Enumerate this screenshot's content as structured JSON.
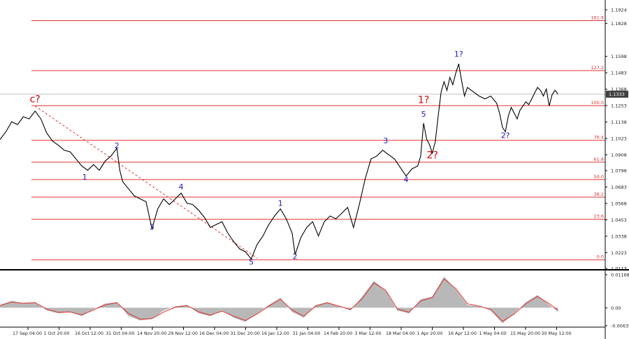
{
  "chart_data": [
    {
      "type": "line",
      "title": "",
      "price_axis_labels": [
        "1.1924",
        "1.1828",
        "1.1598",
        "1.1483",
        "1.1368",
        "1.1253",
        "1.1138",
        "1.1023",
        "1.0908",
        "1.0798",
        "1.0683",
        "1.0568",
        "1.0453",
        "1.0338",
        "1.0223",
        "1.0113"
      ],
      "current_price_label": "1.1333",
      "ylim": [
        1.0113,
        1.1924
      ],
      "fib_levels": [
        {
          "label": "161.8",
          "value": 1.1848
        },
        {
          "label": "127.2",
          "value": 1.1498
        },
        {
          "label": "100.0",
          "value": 1.1253
        },
        {
          "label": "76.4",
          "value": 1.101
        },
        {
          "label": "61.8",
          "value": 1.0857
        },
        {
          "label": "50.0",
          "value": 1.0735
        },
        {
          "label": "38.2",
          "value": 1.0612
        },
        {
          "label": "23.6",
          "value": 1.0457
        },
        {
          "label": "0.0",
          "value": 1.0173
        }
      ],
      "wave_labels": [
        {
          "text": "c?",
          "color": "#d00000",
          "x": 12,
          "y": 1.1275
        },
        {
          "text": "1",
          "color": "#1c1cb8",
          "x": 29,
          "y": 1.0735
        },
        {
          "text": "2",
          "color": "#1c1cb8",
          "x": 40,
          "y": 1.0955
        },
        {
          "text": "3",
          "color": "#1c1cb8",
          "x": 52,
          "y": 1.0385
        },
        {
          "text": "4",
          "color": "#1c1cb8",
          "x": 62,
          "y": 1.0665
        },
        {
          "text": "5",
          "color": "#1c1cb8",
          "x": 86,
          "y": 1.014
        },
        {
          "text": "1",
          "color": "#1c1cb8",
          "x": 96,
          "y": 1.055
        },
        {
          "text": "2",
          "color": "#1c1cb8",
          "x": 101,
          "y": 1.018
        },
        {
          "text": "3",
          "color": "#1c1cb8",
          "x": 132,
          "y": 1.099
        },
        {
          "text": "4",
          "color": "#1c1cb8",
          "x": 139,
          "y": 1.0718
        },
        {
          "text": "5",
          "color": "#1c1cb8",
          "x": 145,
          "y": 1.1175
        },
        {
          "text": "1?",
          "color": "#d00000",
          "x": 145,
          "y": 1.127
        },
        {
          "text": "2?",
          "color": "#d00000",
          "x": 148,
          "y": 1.0885
        },
        {
          "text": "1?",
          "color": "#1c1cb8",
          "x": 157,
          "y": 1.1595
        },
        {
          "text": "2?",
          "color": "#1c1cb8",
          "x": 173,
          "y": 1.1025
        }
      ],
      "price_series": [
        {
          "x": 0,
          "y": 1.1015
        },
        {
          "x": 2,
          "y": 1.107
        },
        {
          "x": 4,
          "y": 1.114
        },
        {
          "x": 6,
          "y": 1.112
        },
        {
          "x": 8,
          "y": 1.1175
        },
        {
          "x": 10,
          "y": 1.116
        },
        {
          "x": 12,
          "y": 1.1215
        },
        {
          "x": 14,
          "y": 1.116
        },
        {
          "x": 16,
          "y": 1.106
        },
        {
          "x": 18,
          "y": 1.1005
        },
        {
          "x": 20,
          "y": 1.0975
        },
        {
          "x": 22,
          "y": 1.094
        },
        {
          "x": 24,
          "y": 1.093
        },
        {
          "x": 26,
          "y": 1.088
        },
        {
          "x": 28,
          "y": 1.083
        },
        {
          "x": 30,
          "y": 1.08
        },
        {
          "x": 32,
          "y": 1.084
        },
        {
          "x": 34,
          "y": 1.08
        },
        {
          "x": 36,
          "y": 1.0865
        },
        {
          "x": 38,
          "y": 1.09
        },
        {
          "x": 40,
          "y": 1.0955
        },
        {
          "x": 41,
          "y": 1.08
        },
        {
          "x": 42,
          "y": 1.072
        },
        {
          "x": 44,
          "y": 1.067
        },
        {
          "x": 46,
          "y": 1.062
        },
        {
          "x": 48,
          "y": 1.06
        },
        {
          "x": 50,
          "y": 1.058
        },
        {
          "x": 52,
          "y": 1.039
        },
        {
          "x": 54,
          "y": 1.053
        },
        {
          "x": 56,
          "y": 1.06
        },
        {
          "x": 58,
          "y": 1.056
        },
        {
          "x": 60,
          "y": 1.06
        },
        {
          "x": 62,
          "y": 1.064
        },
        {
          "x": 64,
          "y": 1.057
        },
        {
          "x": 66,
          "y": 1.056
        },
        {
          "x": 68,
          "y": 1.052
        },
        {
          "x": 70,
          "y": 1.047
        },
        {
          "x": 72,
          "y": 1.04
        },
        {
          "x": 74,
          "y": 1.042
        },
        {
          "x": 76,
          "y": 1.044
        },
        {
          "x": 78,
          "y": 1.036
        },
        {
          "x": 80,
          "y": 1.03
        },
        {
          "x": 82,
          "y": 1.025
        },
        {
          "x": 84,
          "y": 1.023
        },
        {
          "x": 86,
          "y": 1.018
        },
        {
          "x": 88,
          "y": 1.028
        },
        {
          "x": 90,
          "y": 1.034
        },
        {
          "x": 92,
          "y": 1.042
        },
        {
          "x": 94,
          "y": 1.048
        },
        {
          "x": 96,
          "y": 1.053
        },
        {
          "x": 98,
          "y": 1.046
        },
        {
          "x": 100,
          "y": 1.036
        },
        {
          "x": 101,
          "y": 1.021
        },
        {
          "x": 103,
          "y": 1.033
        },
        {
          "x": 105,
          "y": 1.04
        },
        {
          "x": 107,
          "y": 1.044
        },
        {
          "x": 109,
          "y": 1.034
        },
        {
          "x": 111,
          "y": 1.044
        },
        {
          "x": 113,
          "y": 1.048
        },
        {
          "x": 115,
          "y": 1.046
        },
        {
          "x": 117,
          "y": 1.05
        },
        {
          "x": 119,
          "y": 1.054
        },
        {
          "x": 121,
          "y": 1.04
        },
        {
          "x": 123,
          "y": 1.056
        },
        {
          "x": 125,
          "y": 1.074
        },
        {
          "x": 127,
          "y": 1.088
        },
        {
          "x": 129,
          "y": 1.09
        },
        {
          "x": 131,
          "y": 1.094
        },
        {
          "x": 133,
          "y": 1.091
        },
        {
          "x": 135,
          "y": 1.088
        },
        {
          "x": 137,
          "y": 1.082
        },
        {
          "x": 139,
          "y": 1.076
        },
        {
          "x": 141,
          "y": 1.081
        },
        {
          "x": 143,
          "y": 1.083
        },
        {
          "x": 144,
          "y": 1.09
        },
        {
          "x": 145,
          "y": 1.113
        },
        {
          "x": 146,
          "y": 1.102
        },
        {
          "x": 147,
          "y": 1.098
        },
        {
          "x": 148,
          "y": 1.092
        },
        {
          "x": 149,
          "y": 1.1
        },
        {
          "x": 150,
          "y": 1.118
        },
        {
          "x": 151,
          "y": 1.135
        },
        {
          "x": 152,
          "y": 1.142
        },
        {
          "x": 153,
          "y": 1.136
        },
        {
          "x": 154,
          "y": 1.145
        },
        {
          "x": 155,
          "y": 1.14
        },
        {
          "x": 156,
          "y": 1.148
        },
        {
          "x": 157,
          "y": 1.1545
        },
        {
          "x": 158,
          "y": 1.143
        },
        {
          "x": 159,
          "y": 1.132
        },
        {
          "x": 160,
          "y": 1.138
        },
        {
          "x": 162,
          "y": 1.135
        },
        {
          "x": 164,
          "y": 1.132
        },
        {
          "x": 166,
          "y": 1.13
        },
        {
          "x": 168,
          "y": 1.132
        },
        {
          "x": 170,
          "y": 1.127
        },
        {
          "x": 171,
          "y": 1.12
        },
        {
          "x": 172,
          "y": 1.11
        },
        {
          "x": 173,
          "y": 1.107
        },
        {
          "x": 174,
          "y": 1.118
        },
        {
          "x": 175,
          "y": 1.124
        },
        {
          "x": 176,
          "y": 1.12
        },
        {
          "x": 177,
          "y": 1.116
        },
        {
          "x": 178,
          "y": 1.122
        },
        {
          "x": 179,
          "y": 1.125
        },
        {
          "x": 180,
          "y": 1.128
        },
        {
          "x": 181,
          "y": 1.126
        },
        {
          "x": 182,
          "y": 1.13
        },
        {
          "x": 183,
          "y": 1.134
        },
        {
          "x": 184,
          "y": 1.138
        },
        {
          "x": 185,
          "y": 1.136
        },
        {
          "x": 186,
          "y": 1.132
        },
        {
          "x": 187,
          "y": 1.137
        },
        {
          "x": 188,
          "y": 1.125
        },
        {
          "x": 189,
          "y": 1.133
        },
        {
          "x": 190,
          "y": 1.136
        },
        {
          "x": 191,
          "y": 1.1333
        }
      ],
      "trendline": [
        {
          "x": 12,
          "y": 1.125
        },
        {
          "x": 88,
          "y": 1.0185
        }
      ],
      "x_range": [
        0,
        200
      ],
      "grid": false,
      "legend": "none"
    },
    {
      "type": "area",
      "indicator_axis_labels": [
        "0.01168",
        "0.00",
        "-0.00635"
      ],
      "ylim": [
        -0.00635,
        0.01168
      ],
      "x_tick_labels": [
        "17 Sep 04:00",
        "1 Oct 20:00",
        "16 Oct 12:00",
        "31 Oct 04:00",
        "14 Nov 20:00",
        "29 Nov 12:00",
        "16 Dec 04:00",
        "31 Dec 20:00",
        "16 Jan 12:00",
        "31 Jan 04:00",
        "14 Feb 20:00",
        "3 Mar 12:00",
        "18 Mar 04:00",
        "1 Apr 20:00",
        "16 Apr 12:00",
        "1 May 04:00",
        "15 May 20:00",
        "30 May 12:00"
      ],
      "x_tick_positions": [
        6,
        14,
        22,
        30,
        38,
        46,
        54,
        62,
        70,
        78,
        86,
        94,
        102,
        110,
        118,
        126,
        134,
        142
      ],
      "histogram": [
        {
          "x": 0,
          "y": 0.001
        },
        {
          "x": 4,
          "y": 0.0025
        },
        {
          "x": 8,
          "y": 0.0015
        },
        {
          "x": 12,
          "y": 0.002
        },
        {
          "x": 16,
          "y": -0.001
        },
        {
          "x": 20,
          "y": -0.002
        },
        {
          "x": 24,
          "y": -0.0015
        },
        {
          "x": 28,
          "y": -0.003
        },
        {
          "x": 32,
          "y": -0.0005
        },
        {
          "x": 36,
          "y": 0.0015
        },
        {
          "x": 40,
          "y": 0.002
        },
        {
          "x": 44,
          "y": -0.003
        },
        {
          "x": 48,
          "y": -0.0045
        },
        {
          "x": 52,
          "y": -0.004
        },
        {
          "x": 56,
          "y": -0.001
        },
        {
          "x": 60,
          "y": 0.0005
        },
        {
          "x": 64,
          "y": 0.001
        },
        {
          "x": 68,
          "y": -0.002
        },
        {
          "x": 72,
          "y": -0.003
        },
        {
          "x": 76,
          "y": -0.001
        },
        {
          "x": 80,
          "y": -0.0035
        },
        {
          "x": 84,
          "y": -0.005
        },
        {
          "x": 88,
          "y": -0.002
        },
        {
          "x": 92,
          "y": 0.001
        },
        {
          "x": 96,
          "y": 0.0035
        },
        {
          "x": 100,
          "y": -0.0015
        },
        {
          "x": 104,
          "y": -0.0035
        },
        {
          "x": 108,
          "y": 0.001
        },
        {
          "x": 112,
          "y": 0.002
        },
        {
          "x": 116,
          "y": 0.0005
        },
        {
          "x": 120,
          "y": -0.001
        },
        {
          "x": 124,
          "y": 0.004
        },
        {
          "x": 128,
          "y": 0.0095
        },
        {
          "x": 132,
          "y": 0.006
        },
        {
          "x": 136,
          "y": -0.001
        },
        {
          "x": 140,
          "y": -0.002
        },
        {
          "x": 144,
          "y": 0.003
        },
        {
          "x": 148,
          "y": 0.004
        },
        {
          "x": 152,
          "y": 0.011
        },
        {
          "x": 156,
          "y": 0.0065
        },
        {
          "x": 160,
          "y": 0.001
        },
        {
          "x": 164,
          "y": 0.0005
        },
        {
          "x": 168,
          "y": -0.001
        },
        {
          "x": 172,
          "y": -0.0055
        },
        {
          "x": 176,
          "y": -0.002
        },
        {
          "x": 180,
          "y": 0.002
        },
        {
          "x": 184,
          "y": 0.0045
        },
        {
          "x": 188,
          "y": 0.001
        },
        {
          "x": 191,
          "y": -0.0015
        }
      ],
      "signal_line": [
        {
          "x": 0,
          "y": 0.0008
        },
        {
          "x": 4,
          "y": 0.002
        },
        {
          "x": 8,
          "y": 0.0016
        },
        {
          "x": 12,
          "y": 0.0018
        },
        {
          "x": 16,
          "y": -0.0005
        },
        {
          "x": 20,
          "y": -0.0016
        },
        {
          "x": 24,
          "y": -0.0015
        },
        {
          "x": 28,
          "y": -0.0025
        },
        {
          "x": 32,
          "y": -0.0008
        },
        {
          "x": 36,
          "y": 0.001
        },
        {
          "x": 40,
          "y": 0.0018
        },
        {
          "x": 44,
          "y": -0.002
        },
        {
          "x": 48,
          "y": -0.004
        },
        {
          "x": 52,
          "y": -0.0038
        },
        {
          "x": 56,
          "y": -0.0015
        },
        {
          "x": 60,
          "y": 0.0002
        },
        {
          "x": 64,
          "y": 0.0008
        },
        {
          "x": 68,
          "y": -0.0014
        },
        {
          "x": 72,
          "y": -0.0026
        },
        {
          "x": 76,
          "y": -0.0012
        },
        {
          "x": 80,
          "y": -0.003
        },
        {
          "x": 84,
          "y": -0.0045
        },
        {
          "x": 88,
          "y": -0.0022
        },
        {
          "x": 92,
          "y": 0.0006
        },
        {
          "x": 96,
          "y": 0.003
        },
        {
          "x": 100,
          "y": -0.0008
        },
        {
          "x": 104,
          "y": -0.003
        },
        {
          "x": 108,
          "y": 0.0005
        },
        {
          "x": 112,
          "y": 0.0018
        },
        {
          "x": 116,
          "y": 0.0006
        },
        {
          "x": 120,
          "y": -0.0006
        },
        {
          "x": 124,
          "y": 0.0032
        },
        {
          "x": 128,
          "y": 0.0088
        },
        {
          "x": 132,
          "y": 0.0062
        },
        {
          "x": 136,
          "y": -0.0004
        },
        {
          "x": 140,
          "y": -0.0016
        },
        {
          "x": 144,
          "y": 0.0024
        },
        {
          "x": 148,
          "y": 0.0036
        },
        {
          "x": 152,
          "y": 0.0102
        },
        {
          "x": 156,
          "y": 0.0068
        },
        {
          "x": 160,
          "y": 0.0014
        },
        {
          "x": 164,
          "y": 0.0006
        },
        {
          "x": 168,
          "y": -0.0006
        },
        {
          "x": 172,
          "y": -0.0048
        },
        {
          "x": 176,
          "y": -0.0022
        },
        {
          "x": 180,
          "y": 0.0014
        },
        {
          "x": 184,
          "y": 0.004
        },
        {
          "x": 188,
          "y": 0.0014
        },
        {
          "x": 191,
          "y": -0.0008
        }
      ],
      "x_range": [
        0,
        200
      ],
      "grid": false,
      "legend": "none"
    }
  ],
  "colors": {
    "price": "#000000",
    "fib_line": "#e03030",
    "fib_label": "#e03030",
    "trendline": "#e03030",
    "histogram_fill": "#b8b8b8",
    "signal_line": "#e03030",
    "axis_text": "#222222",
    "axis_line": "#000000",
    "current_price_bg": "#404040",
    "current_price_text": "#ffffff"
  }
}
